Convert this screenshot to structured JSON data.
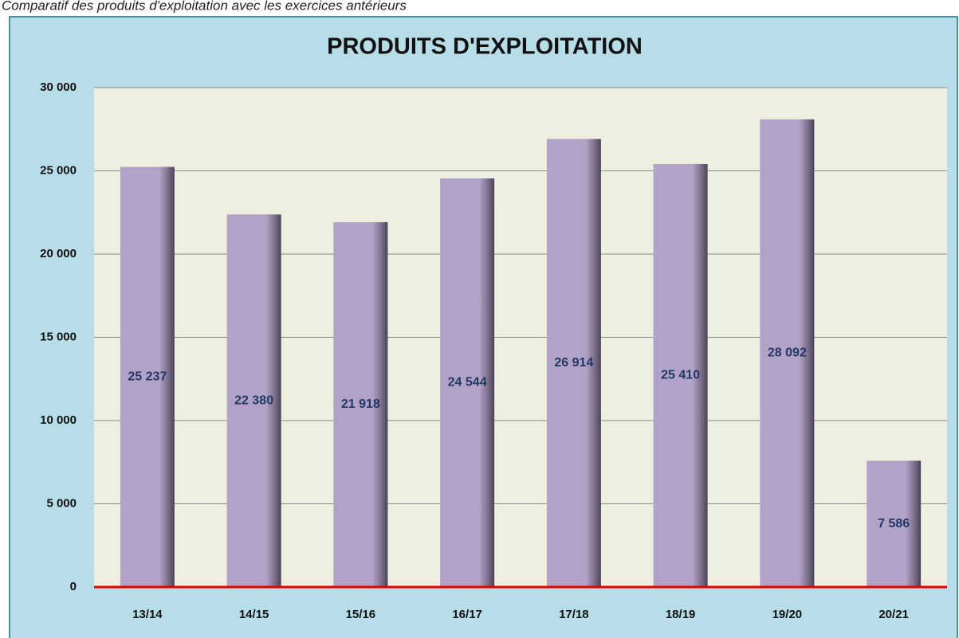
{
  "caption": "Comparatif des produits d'exploitation avec les exercices antérieurs",
  "chart_data": {
    "type": "bar",
    "title": "PRODUITS D'EXPLOITATION",
    "categories": [
      "13/14",
      "14/15",
      "15/16",
      "16/17",
      "17/18",
      "18/19",
      "19/20",
      "20/21"
    ],
    "values": [
      25237,
      22380,
      21918,
      24544,
      26914,
      25410,
      28092,
      7586
    ],
    "value_labels": [
      "25 237",
      "22 380",
      "21 918",
      "24 544",
      "26 914",
      "25 410",
      "28 092",
      "7 586"
    ],
    "color": "#b3a2c7",
    "ylim": [
      0,
      30000
    ],
    "yticks": [
      0,
      {
        "value": 5000,
        "label": "5 000"
      },
      {
        "value": 10000,
        "label": "10 000"
      },
      {
        "value": 15000,
        "label": "15 000"
      },
      {
        "value": 20000,
        "label": "20 000"
      },
      {
        "value": 25000,
        "label": "25 000"
      },
      {
        "value": 30000,
        "label": "30 000"
      }
    ],
    "grid": true
  }
}
